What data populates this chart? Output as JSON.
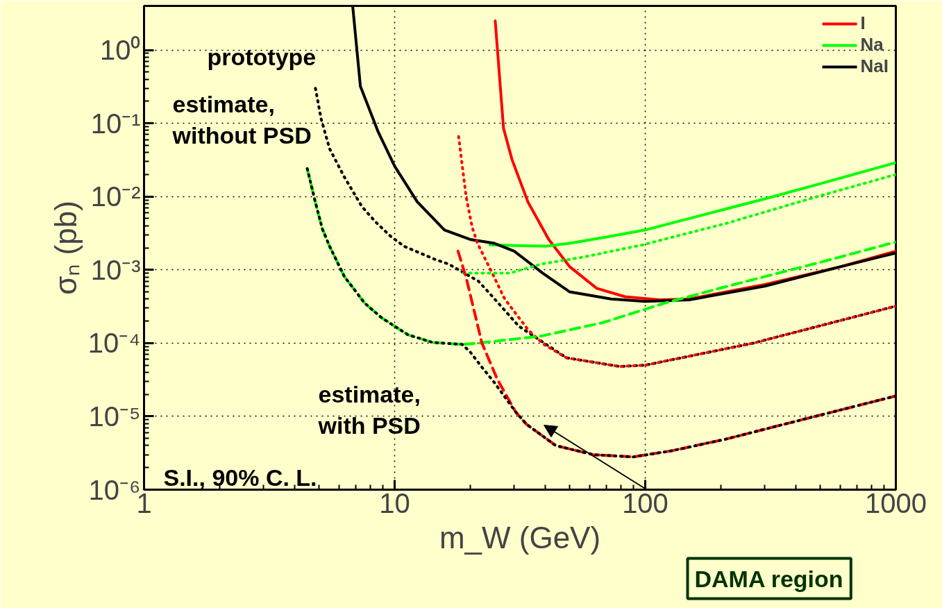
{
  "chart_data": {
    "type": "line",
    "xlabel": "m_W (GeV)",
    "ylabel": "σₙ (pb)",
    "log": "xy",
    "grid": true,
    "legend": "top right",
    "xlim": [
      1,
      1000
    ],
    "xticks": [
      1,
      10,
      100,
      1000
    ],
    "ylim": [
      1e-06,
      4
    ],
    "yticks": [
      {
        "value": 1e-06,
        "label": "10⁻⁶"
      },
      {
        "value": 1e-05,
        "label": "10⁻⁵"
      },
      {
        "value": 0.0001,
        "label": "10⁻⁴"
      },
      {
        "value": 0.001,
        "label": "10⁻³"
      },
      {
        "value": 0.01,
        "label": "10⁻²"
      },
      {
        "value": 0.1,
        "label": "10⁻¹"
      },
      {
        "value": 1,
        "label": "10⁰"
      }
    ],
    "series": [
      {
        "name": "I",
        "color": "#ff0000",
        "line_style": "solid",
        "x": [
          25.2,
          27.2,
          29.4,
          34,
          41.2,
          50,
          64,
          83,
          114,
          150,
          300,
          600,
          1000
        ],
        "values": [
          2.5,
          0.085,
          0.032,
          0.0085,
          0.0026,
          0.0011,
          0.00056,
          0.00043,
          0.00039,
          0.0004,
          0.00063,
          0.0011,
          0.0018
        ]
      },
      {
        "name": "Na",
        "color": "#00ff00",
        "line_style": "solid",
        "x": [
          24,
          30,
          40,
          50,
          70,
          100,
          200,
          300,
          500,
          1000
        ],
        "values": [
          0.0022,
          0.00215,
          0.0021,
          0.0023,
          0.0028,
          0.0035,
          0.0065,
          0.0093,
          0.015,
          0.029
        ]
      },
      {
        "name": "NaI",
        "color": "#000000",
        "line_style": "solid",
        "x": [
          6.8,
          7.3,
          8.6,
          10,
          12.3,
          15.8,
          20,
          25,
          30,
          39,
          50,
          73,
          100,
          150,
          300,
          600,
          1000
        ],
        "values": [
          4,
          0.32,
          0.076,
          0.026,
          0.0085,
          0.0035,
          0.0026,
          0.0023,
          0.0018,
          0.0009,
          0.0005,
          0.0004,
          0.00037,
          0.00039,
          0.0006,
          0.0011,
          0.0017
        ]
      },
      {
        "color": "#000000",
        "line_style": "dotted",
        "x": [
          4.83,
          5.09,
          5.5,
          6.27,
          7.4,
          8.4,
          9.6,
          10.9,
          14.4,
          16.4,
          21.6,
          24.6,
          31.3,
          48.5,
          79,
          100,
          270,
          1000
        ],
        "values": [
          0.3,
          0.115,
          0.045,
          0.019,
          0.0073,
          0.0045,
          0.0029,
          0.0021,
          0.0014,
          0.0012,
          0.0007,
          0.00043,
          0.00017,
          6.3e-05,
          4.8e-05,
          5e-05,
          0.0001,
          0.00032
        ]
      },
      {
        "color": "#ff0000",
        "line_style": "dotted",
        "x": [
          18,
          19.3,
          20.4,
          21.4,
          24.3,
          27.5,
          34.2,
          39.4,
          48.5,
          79,
          100,
          270,
          1000
        ],
        "values": [
          0.066,
          0.0098,
          0.0038,
          0.0023,
          0.00096,
          0.0004,
          0.00015,
          9.6e-05,
          6.3e-05,
          4.8e-05,
          5e-05,
          0.0001,
          0.00032
        ]
      },
      {
        "color": "#00ff00",
        "line_style": "dotted",
        "x": [
          18.8,
          28.8,
          38.5,
          57,
          98,
          210,
          496,
          1000
        ],
        "values": [
          0.0009,
          0.0009,
          0.0012,
          0.0015,
          0.0022,
          0.0043,
          0.0102,
          0.02
        ]
      },
      {
        "color": "#00ff00",
        "line_style": "dashed",
        "x": [
          4.48,
          4.83,
          5.15,
          5.5,
          6.3,
          7.6,
          8.9,
          11.3,
          14.2,
          18.6,
          21.6,
          38.5,
          67.6,
          119,
          210,
          496,
          1000
        ],
        "values": [
          0.024,
          0.0083,
          0.0036,
          0.0021,
          0.00081,
          0.00035,
          0.00022,
          0.00013,
          0.000102,
          9.6e-05,
          0.0001,
          0.000125,
          0.00019,
          0.00035,
          0.00059,
          0.00126,
          0.0024
        ]
      },
      {
        "color": "#ff0000",
        "line_style": "dashed",
        "x": [
          17.9,
          19.3,
          22.3,
          25.7,
          30.4,
          33.6,
          43.9,
          62.1,
          89.6,
          128,
          210,
          438,
          1000
        ],
        "values": [
          0.0018,
          0.00078,
          0.0001,
          3.2e-05,
          1.15e-05,
          7.8e-06,
          4e-06,
          3e-06,
          2.8e-06,
          3.4e-06,
          4.9e-06,
          9.3e-06,
          1.9e-05
        ]
      },
      {
        "color": "#000000",
        "line_style": "dotted",
        "x": [
          4.48,
          4.83,
          5.15,
          5.5,
          6.3,
          7.6,
          8.9,
          11.3,
          14.2,
          18.6,
          20,
          22.4,
          25,
          30.4,
          33.6,
          43.9,
          62.1,
          89.6,
          128,
          210,
          438,
          1000
        ],
        "values": [
          0.024,
          0.0083,
          0.0036,
          0.0021,
          0.00081,
          0.00035,
          0.00022,
          0.00013,
          0.000102,
          9.6e-05,
          7.6e-05,
          4.6e-05,
          2.9e-05,
          1.15e-05,
          7.8e-06,
          4e-06,
          3e-06,
          2.8e-06,
          3.4e-06,
          4.9e-06,
          9.3e-06,
          1.9e-05
        ]
      }
    ],
    "annotations": [
      "prototype",
      "estimate,\nwithout PSD",
      "estimate,\nwith PSD",
      "S.I., 90% C. L.",
      "DAMA region"
    ]
  }
}
